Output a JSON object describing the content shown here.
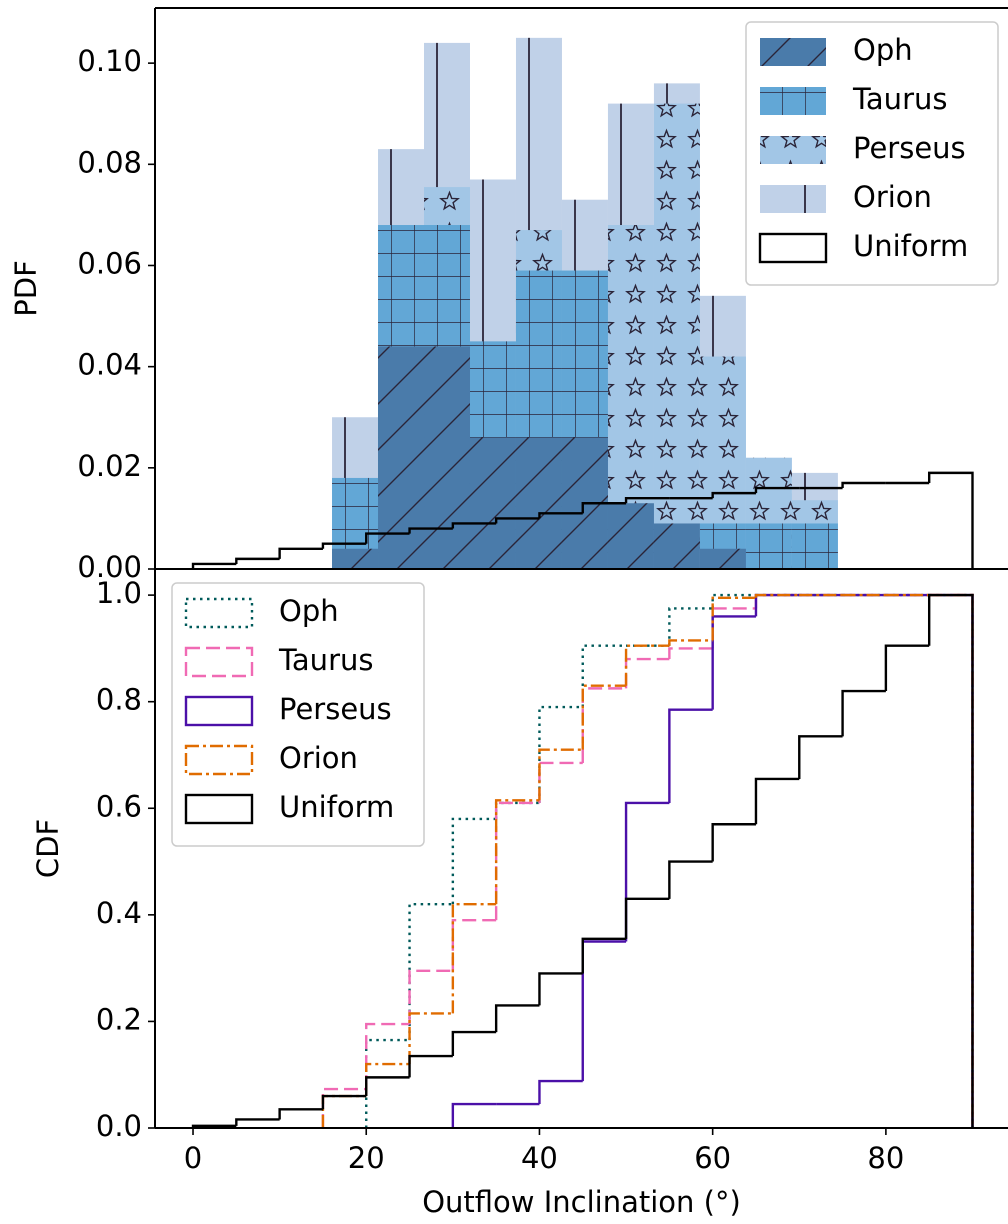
{
  "chart_data": [
    {
      "type": "histogram",
      "ylabel": "PDF",
      "xlim": [
        -4.39,
        94.1
      ],
      "ylim": [
        0,
        0.1109
      ],
      "yticks": [
        {
          "value": 0,
          "label": "0.00"
        },
        {
          "value": 0.02,
          "label": "0.02"
        },
        {
          "value": 0.04,
          "label": "0.04"
        },
        {
          "value": 0.06,
          "label": "0.06"
        },
        {
          "value": 0.08,
          "label": "0.08"
        },
        {
          "value": 0.1,
          "label": "0.10"
        }
      ],
      "legend": "upper right",
      "series": [
        {
          "name": "Oph",
          "color": "#4a7baa",
          "hatch": "/",
          "histtype": "stepfilled",
          "bins": [
            16.05,
            21.36,
            26.67,
            31.98,
            37.29,
            42.6,
            47.91,
            53.22,
            58.53,
            63.84,
            69.15,
            74.46
          ],
          "values": [
            0.004,
            0.044,
            0.044,
            0.026,
            0.026,
            0.026,
            0.013,
            0.009,
            0.004,
            0,
            0
          ]
        },
        {
          "name": "Taurus",
          "color": "#62a7d6",
          "hatch": "+",
          "histtype": "stepfilled",
          "bins": [
            16.05,
            21.36,
            26.67,
            31.98,
            37.29,
            42.6,
            47.91,
            53.22,
            58.53,
            63.84,
            69.15,
            74.46
          ],
          "values": [
            0.018,
            0.068,
            0.068,
            0.045,
            0.059,
            0.059,
            0.009,
            0,
            0.009,
            0.009,
            0.009
          ]
        },
        {
          "name": "Perseus",
          "color": "#a2c6e6",
          "hatch": "*",
          "histtype": "stepfilled",
          "bins": [
            16.05,
            21.36,
            26.67,
            31.98,
            37.29,
            42.6,
            47.91,
            53.22,
            58.53,
            63.84,
            69.15,
            74.46
          ],
          "values": [
            0,
            0,
            0.0755,
            0,
            0.067,
            0,
            0.068,
            0.092,
            0.042,
            0.022,
            0.0136
          ]
        },
        {
          "name": "Orion",
          "color": "#c0d1e8",
          "hatch": "|",
          "histtype": "stepfilled",
          "bins": [
            16.05,
            21.36,
            26.67,
            31.98,
            37.29,
            42.6,
            47.91,
            53.22,
            58.53,
            63.84,
            69.15,
            74.46
          ],
          "values": [
            0.03,
            0.083,
            0.104,
            0.077,
            0.105,
            0.073,
            0.092,
            0.096,
            0.054,
            0.015,
            0.019
          ]
        },
        {
          "name": "Uniform",
          "color": "#000000",
          "linestyle": "solid",
          "histtype": "step",
          "bins": [
            0,
            5,
            10,
            15,
            20,
            25,
            30,
            35,
            40,
            45,
            50,
            55,
            60,
            65,
            70,
            75,
            80,
            85,
            90
          ],
          "values": [
            0.001,
            0.002,
            0.004,
            0.005,
            0.007,
            0.008,
            0.009,
            0.01,
            0.011,
            0.013,
            0.014,
            0.014,
            0.015,
            0.016,
            0.016,
            0.017,
            0.017,
            0.019
          ]
        }
      ]
    },
    {
      "type": "histogram",
      "ylabel": "CDF",
      "xlabel": "Outflow Inclination (°)",
      "xlim": [
        -4.39,
        94.1
      ],
      "ylim": [
        0,
        1.049
      ],
      "xticks": [
        0,
        20,
        40,
        60,
        80
      ],
      "yticks": [
        {
          "value": 0,
          "label": "0.0"
        },
        {
          "value": 0.2,
          "label": "0.2"
        },
        {
          "value": 0.4,
          "label": "0.4"
        },
        {
          "value": 0.6,
          "label": "0.6"
        },
        {
          "value": 0.8,
          "label": "0.8"
        },
        {
          "value": 1,
          "label": "1.0"
        }
      ],
      "legend": "upper left",
      "series": [
        {
          "name": "Oph",
          "color": "#005a5a",
          "linestyle": "dotted",
          "histtype": "step",
          "bins": [
            0,
            5,
            10,
            15,
            20,
            25,
            30,
            35,
            40,
            45,
            50,
            55,
            60,
            65,
            70,
            75,
            80,
            85,
            90
          ],
          "values": [
            null,
            null,
            null,
            null,
            0.165,
            0.42,
            0.58,
            0.61,
            0.79,
            0.905,
            0.905,
            0.975,
            1,
            1,
            1,
            1,
            1,
            1
          ]
        },
        {
          "name": "Taurus",
          "color": "#f06ab4",
          "linestyle": "dashed",
          "histtype": "step",
          "bins": [
            0,
            5,
            10,
            15,
            20,
            25,
            30,
            35,
            40,
            45,
            50,
            55,
            60,
            65,
            70,
            75,
            80,
            85,
            90
          ],
          "values": [
            null,
            null,
            null,
            0.073,
            0.195,
            0.295,
            0.39,
            0.61,
            0.685,
            0.825,
            0.88,
            0.9,
            0.975,
            1,
            1,
            1,
            1,
            1
          ]
        },
        {
          "name": "Perseus",
          "color": "#4b10a8",
          "linestyle": "solid",
          "histtype": "step",
          "bins": [
            0,
            5,
            10,
            15,
            20,
            25,
            30,
            35,
            40,
            45,
            50,
            55,
            60,
            65,
            70,
            75,
            80,
            85,
            90
          ],
          "values": [
            null,
            null,
            null,
            null,
            null,
            null,
            0.045,
            0.045,
            0.088,
            0.35,
            0.61,
            0.785,
            0.96,
            1,
            1,
            1,
            1,
            1
          ]
        },
        {
          "name": "Orion",
          "color": "#e06c00",
          "linestyle": "dashdot",
          "histtype": "step",
          "bins": [
            0,
            5,
            10,
            15,
            20,
            25,
            30,
            35,
            40,
            45,
            50,
            55,
            60,
            65,
            70,
            75,
            80,
            85,
            90
          ],
          "values": [
            null,
            null,
            null,
            0.06,
            0.12,
            0.215,
            0.42,
            0.615,
            0.71,
            0.83,
            0.905,
            0.915,
            0.995,
            1,
            1,
            1,
            1,
            1
          ]
        },
        {
          "name": "Uniform",
          "color": "#000000",
          "linestyle": "solid",
          "histtype": "step",
          "bins": [
            0,
            5,
            10,
            15,
            20,
            25,
            30,
            35,
            40,
            45,
            50,
            55,
            60,
            65,
            70,
            75,
            80,
            85,
            90
          ],
          "values": [
            0.004,
            0.016,
            0.035,
            0.06,
            0.095,
            0.135,
            0.18,
            0.23,
            0.29,
            0.355,
            0.43,
            0.5,
            0.57,
            0.655,
            0.735,
            0.82,
            0.905,
            1
          ]
        }
      ]
    }
  ]
}
